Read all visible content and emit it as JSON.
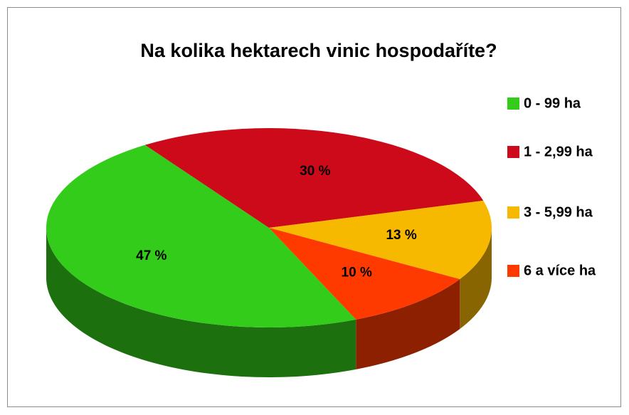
{
  "chart_data": {
    "type": "pie",
    "title": "Na kolika hektarech vinic hospodaříte?",
    "categories": [
      "0 - 99 ha",
      "1 - 2,99 ha",
      "3 - 5,99 ha",
      "6 a více ha"
    ],
    "values": [
      47,
      30,
      13,
      10
    ],
    "value_labels": [
      "47 %",
      "30 %",
      "13 %",
      "10 %"
    ],
    "colors": [
      "#33cc1a",
      "#cc0a1a",
      "#f7b800",
      "#ff3a00"
    ],
    "legend": "right"
  }
}
